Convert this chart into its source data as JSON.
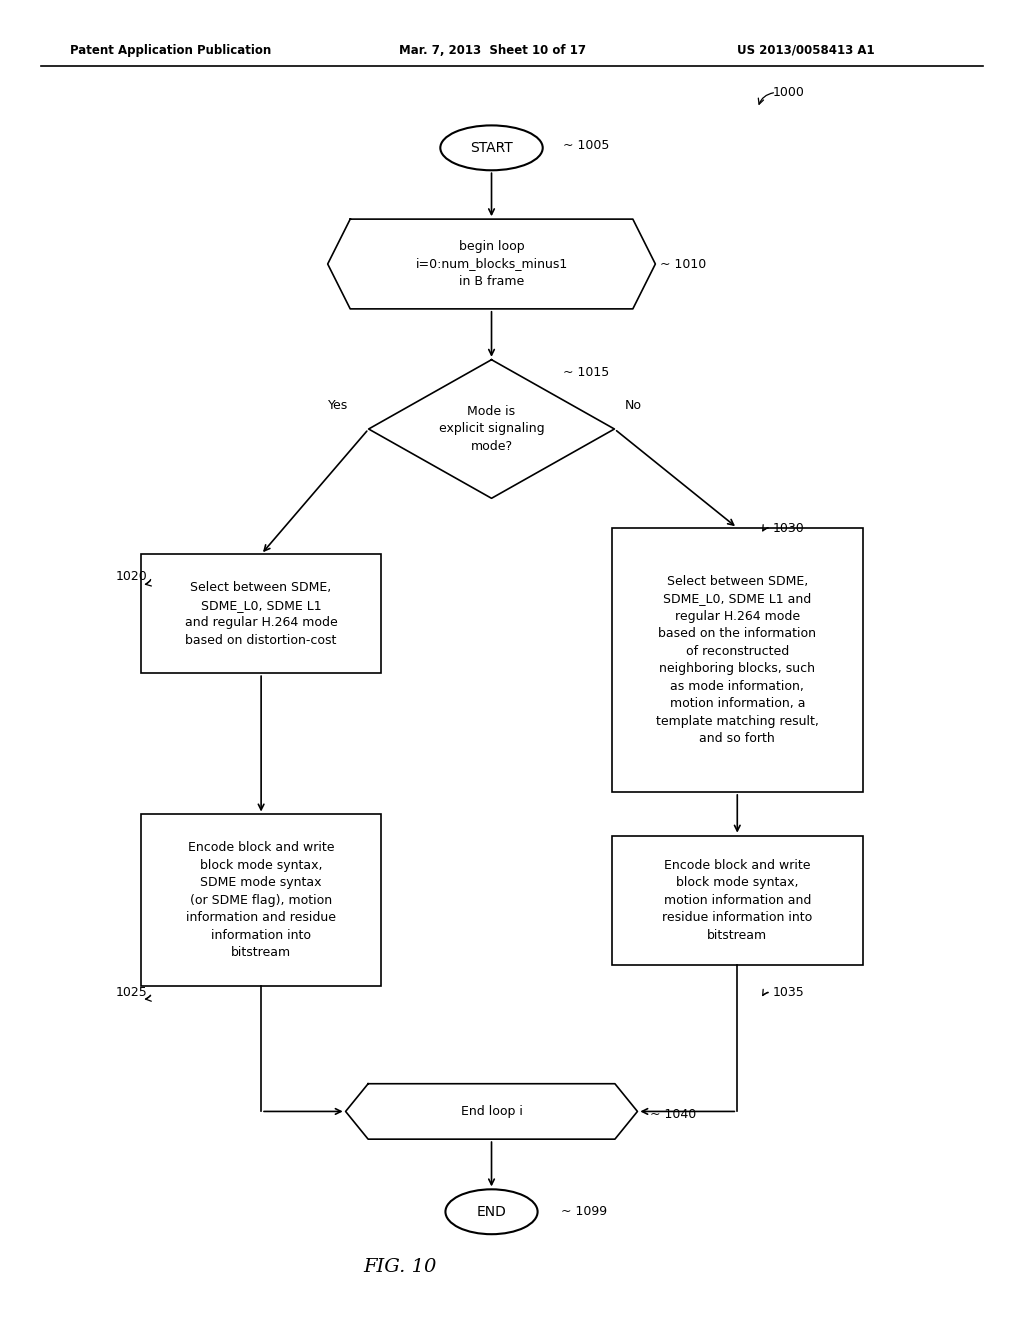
{
  "bg_color": "#ffffff",
  "header_left": "Patent Application Publication",
  "header_mid": "Mar. 7, 2013  Sheet 10 of 17",
  "header_right": "US 2013/0058413 A1",
  "figure_label": "FIG. 10",
  "line_color": "#000000",
  "text_color": "#000000",
  "font_size_node": 9,
  "font_size_header": 9
}
